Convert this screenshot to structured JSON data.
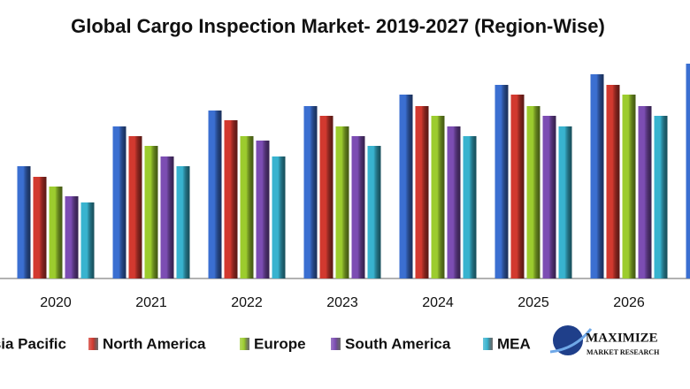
{
  "chart_data": {
    "type": "bar",
    "title": "Global Cargo Inspection Market- 2019-2027 (Region-Wise)",
    "categories": [
      "2020",
      "2021",
      "2022",
      "2023",
      "2024",
      "2025",
      "2026",
      null
    ],
    "series": [
      {
        "name": "Asia Pacific",
        "color": "#3b6fd1",
        "values": [
          127,
          172,
          190,
          195,
          208,
          219,
          231,
          243
        ]
      },
      {
        "name": "North America",
        "color": "#d2392f",
        "values": [
          115,
          161,
          179,
          184,
          195,
          208,
          219,
          null
        ]
      },
      {
        "name": "Europe",
        "color": "#9ccc2e",
        "values": [
          104,
          150,
          161,
          172,
          184,
          195,
          208,
          null
        ]
      },
      {
        "name": "South America",
        "color": "#7c4db3",
        "values": [
          93,
          138,
          156,
          161,
          172,
          184,
          195,
          null
        ]
      },
      {
        "name": "MEA",
        "color": "#38b3cf",
        "values": [
          86,
          127,
          138,
          150,
          161,
          172,
          184,
          null
        ]
      }
    ],
    "ylim": [
      0,
      250
    ],
    "legend": "bottom"
  },
  "logo": {
    "name": "MAXIMIZE",
    "tagline": "MARKET RESEARCH"
  }
}
